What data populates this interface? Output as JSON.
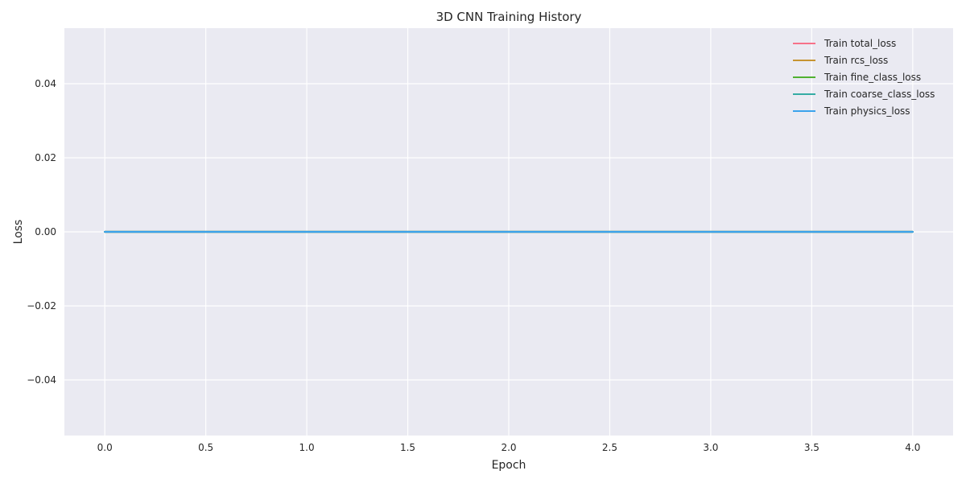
{
  "chart_data": {
    "type": "line",
    "title": "3D CNN Training History",
    "xlabel": "Epoch",
    "ylabel": "Loss",
    "xlim": [
      -0.2,
      4.2
    ],
    "ylim": [
      -0.055,
      0.055
    ],
    "xticks": [
      0.0,
      0.5,
      1.0,
      1.5,
      2.0,
      2.5,
      3.0,
      3.5,
      4.0
    ],
    "xtick_labels": [
      "0.0",
      "0.5",
      "1.0",
      "1.5",
      "2.0",
      "2.5",
      "3.0",
      "3.5",
      "4.0"
    ],
    "yticks": [
      -0.04,
      -0.02,
      0.0,
      0.02,
      0.04
    ],
    "ytick_labels": [
      "−0.04",
      "−0.02",
      "0.00",
      "0.02",
      "0.04"
    ],
    "grid": true,
    "legend_position": "top-right",
    "x": [
      0,
      1,
      2,
      3,
      4
    ],
    "series": [
      {
        "name": "Train total_loss",
        "color": "#f77189",
        "values": [
          0,
          0,
          0,
          0,
          0
        ]
      },
      {
        "name": "Train rcs_loss",
        "color": "#c69432",
        "values": [
          0,
          0,
          0,
          0,
          0
        ]
      },
      {
        "name": "Train fine_class_loss",
        "color": "#50b131",
        "values": [
          0,
          0,
          0,
          0,
          0
        ]
      },
      {
        "name": "Train coarse_class_loss",
        "color": "#35aca4",
        "values": [
          0,
          0,
          0,
          0,
          0
        ]
      },
      {
        "name": "Train physics_loss",
        "color": "#3ba3ec",
        "values": [
          0,
          0,
          0,
          0,
          0
        ]
      }
    ],
    "background_color": "#eaeaf2",
    "grid_color": "#ffffff"
  }
}
